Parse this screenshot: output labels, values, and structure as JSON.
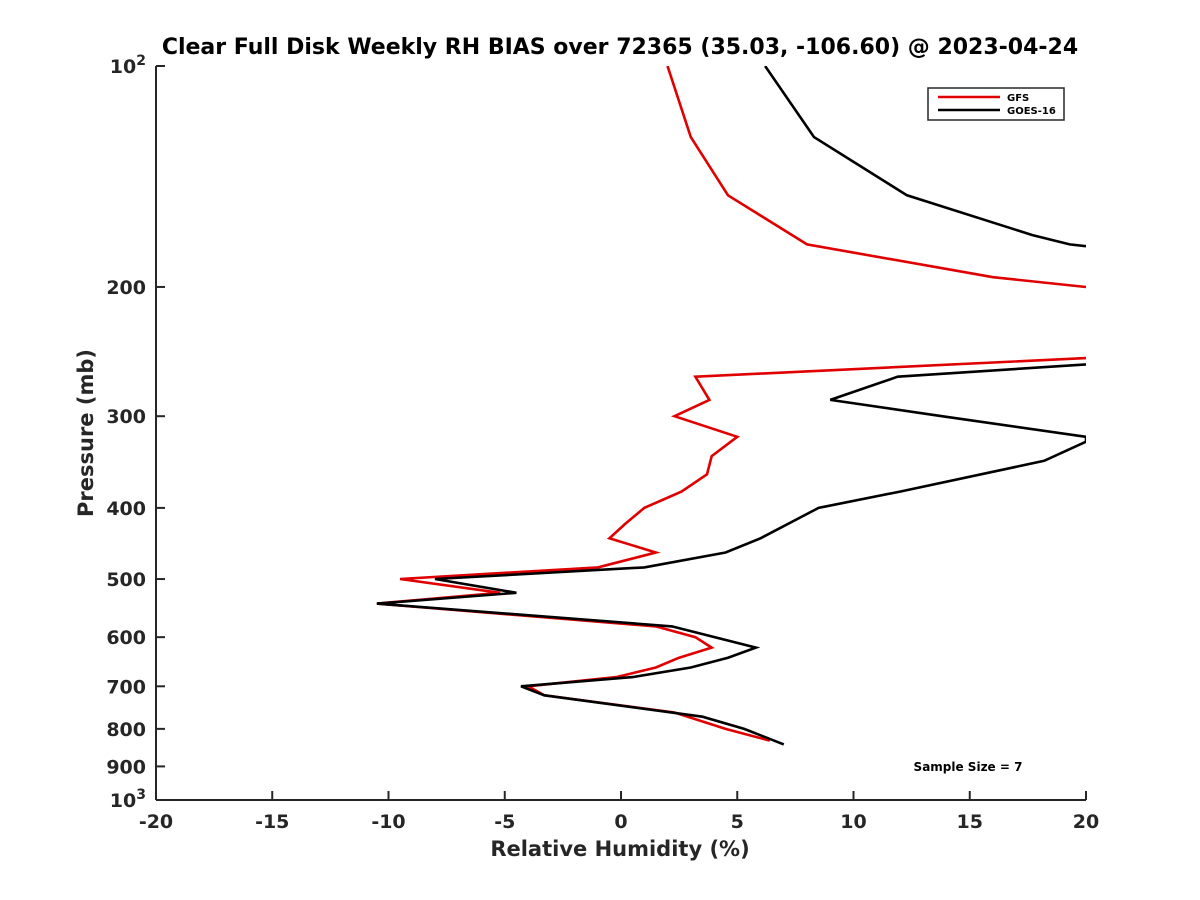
{
  "chart_data": {
    "type": "line",
    "title": "Clear Full Disk Weekly RH BIAS over 72365 (35.03, -106.60) @ 2023-04-24",
    "xlabel": "Relative Humidity (%)",
    "ylabel": "Pressure (mb)",
    "xlim": [
      -20,
      20
    ],
    "ylim": [
      100,
      1000
    ],
    "y_scale": "log",
    "y_reversed": true,
    "x_ticks": [
      "-20",
      "-15",
      "-10",
      "-5",
      "0",
      "5",
      "10",
      "15",
      "20"
    ],
    "y_tick_values": [
      100,
      200,
      300,
      400,
      500,
      600,
      700,
      800,
      900,
      1000
    ],
    "y_tick_labels": [
      {
        "base": "10",
        "exp": "2"
      },
      {
        "base": "200",
        "exp": ""
      },
      {
        "base": "300",
        "exp": ""
      },
      {
        "base": "400",
        "exp": ""
      },
      {
        "base": "500",
        "exp": ""
      },
      {
        "base": "600",
        "exp": ""
      },
      {
        "base": "700",
        "exp": ""
      },
      {
        "base": "800",
        "exp": ""
      },
      {
        "base": "900",
        "exp": ""
      },
      {
        "base": "10",
        "exp": "3"
      }
    ],
    "legend_position": "top-right",
    "grid": false,
    "annotation": "Sample Size = 7",
    "series": [
      {
        "name": "GFS",
        "color": "#e00000",
        "segments": [
          [
            {
              "x": 2.0,
              "y": 100
            },
            {
              "x": 3.0,
              "y": 125
            },
            {
              "x": 4.6,
              "y": 150
            },
            {
              "x": 8.0,
              "y": 175
            },
            {
              "x": 16.0,
              "y": 194
            },
            {
              "x": 20.0,
              "y": 200
            }
          ],
          [
            {
              "x": 20.0,
              "y": 250
            },
            {
              "x": 3.2,
              "y": 265
            },
            {
              "x": 3.8,
              "y": 285
            },
            {
              "x": 2.3,
              "y": 300
            },
            {
              "x": 5.0,
              "y": 320
            },
            {
              "x": 3.9,
              "y": 340
            },
            {
              "x": 3.7,
              "y": 360
            },
            {
              "x": 2.6,
              "y": 380
            },
            {
              "x": 1.0,
              "y": 400
            },
            {
              "x": 0.2,
              "y": 420
            },
            {
              "x": -0.5,
              "y": 440
            },
            {
              "x": 1.5,
              "y": 460
            },
            {
              "x": -1.0,
              "y": 482
            },
            {
              "x": -9.5,
              "y": 500
            },
            {
              "x": -5.2,
              "y": 522
            },
            {
              "x": -10.5,
              "y": 540
            },
            {
              "x": 1.5,
              "y": 580
            },
            {
              "x": 3.2,
              "y": 600
            },
            {
              "x": 3.9,
              "y": 620
            },
            {
              "x": 2.5,
              "y": 640
            },
            {
              "x": 1.5,
              "y": 660
            },
            {
              "x": -0.2,
              "y": 680
            },
            {
              "x": -4.0,
              "y": 700
            },
            {
              "x": -3.3,
              "y": 720
            },
            {
              "x": 2.3,
              "y": 760
            },
            {
              "x": 4.5,
              "y": 800
            },
            {
              "x": 6.4,
              "y": 830
            }
          ]
        ]
      },
      {
        "name": "GOES-16",
        "color": "#000000",
        "segments": [
          [
            {
              "x": 6.2,
              "y": 100
            },
            {
              "x": 8.3,
              "y": 125
            },
            {
              "x": 12.3,
              "y": 150
            },
            {
              "x": 17.7,
              "y": 170
            },
            {
              "x": 19.3,
              "y": 175
            },
            {
              "x": 20.0,
              "y": 176
            }
          ],
          [
            {
              "x": 20.0,
              "y": 255
            },
            {
              "x": 11.9,
              "y": 265
            },
            {
              "x": 9.0,
              "y": 285
            },
            {
              "x": 13.8,
              "y": 300
            },
            {
              "x": 20.0,
              "y": 320
            },
            {
              "x": 20.0,
              "y": 325
            },
            {
              "x": 18.2,
              "y": 345
            },
            {
              "x": 12.0,
              "y": 380
            },
            {
              "x": 8.5,
              "y": 400
            },
            {
              "x": 6.0,
              "y": 440
            },
            {
              "x": 4.5,
              "y": 460
            },
            {
              "x": 1.0,
              "y": 482
            },
            {
              "x": -8.0,
              "y": 500
            },
            {
              "x": -4.5,
              "y": 522
            },
            {
              "x": -10.5,
              "y": 540
            },
            {
              "x": 2.2,
              "y": 580
            },
            {
              "x": 5.8,
              "y": 620
            },
            {
              "x": 4.6,
              "y": 640
            },
            {
              "x": 3.0,
              "y": 660
            },
            {
              "x": 0.5,
              "y": 680
            },
            {
              "x": -4.3,
              "y": 700
            },
            {
              "x": -3.3,
              "y": 720
            },
            {
              "x": 3.5,
              "y": 770
            },
            {
              "x": 5.3,
              "y": 800
            },
            {
              "x": 7.0,
              "y": 840
            }
          ]
        ]
      }
    ]
  }
}
